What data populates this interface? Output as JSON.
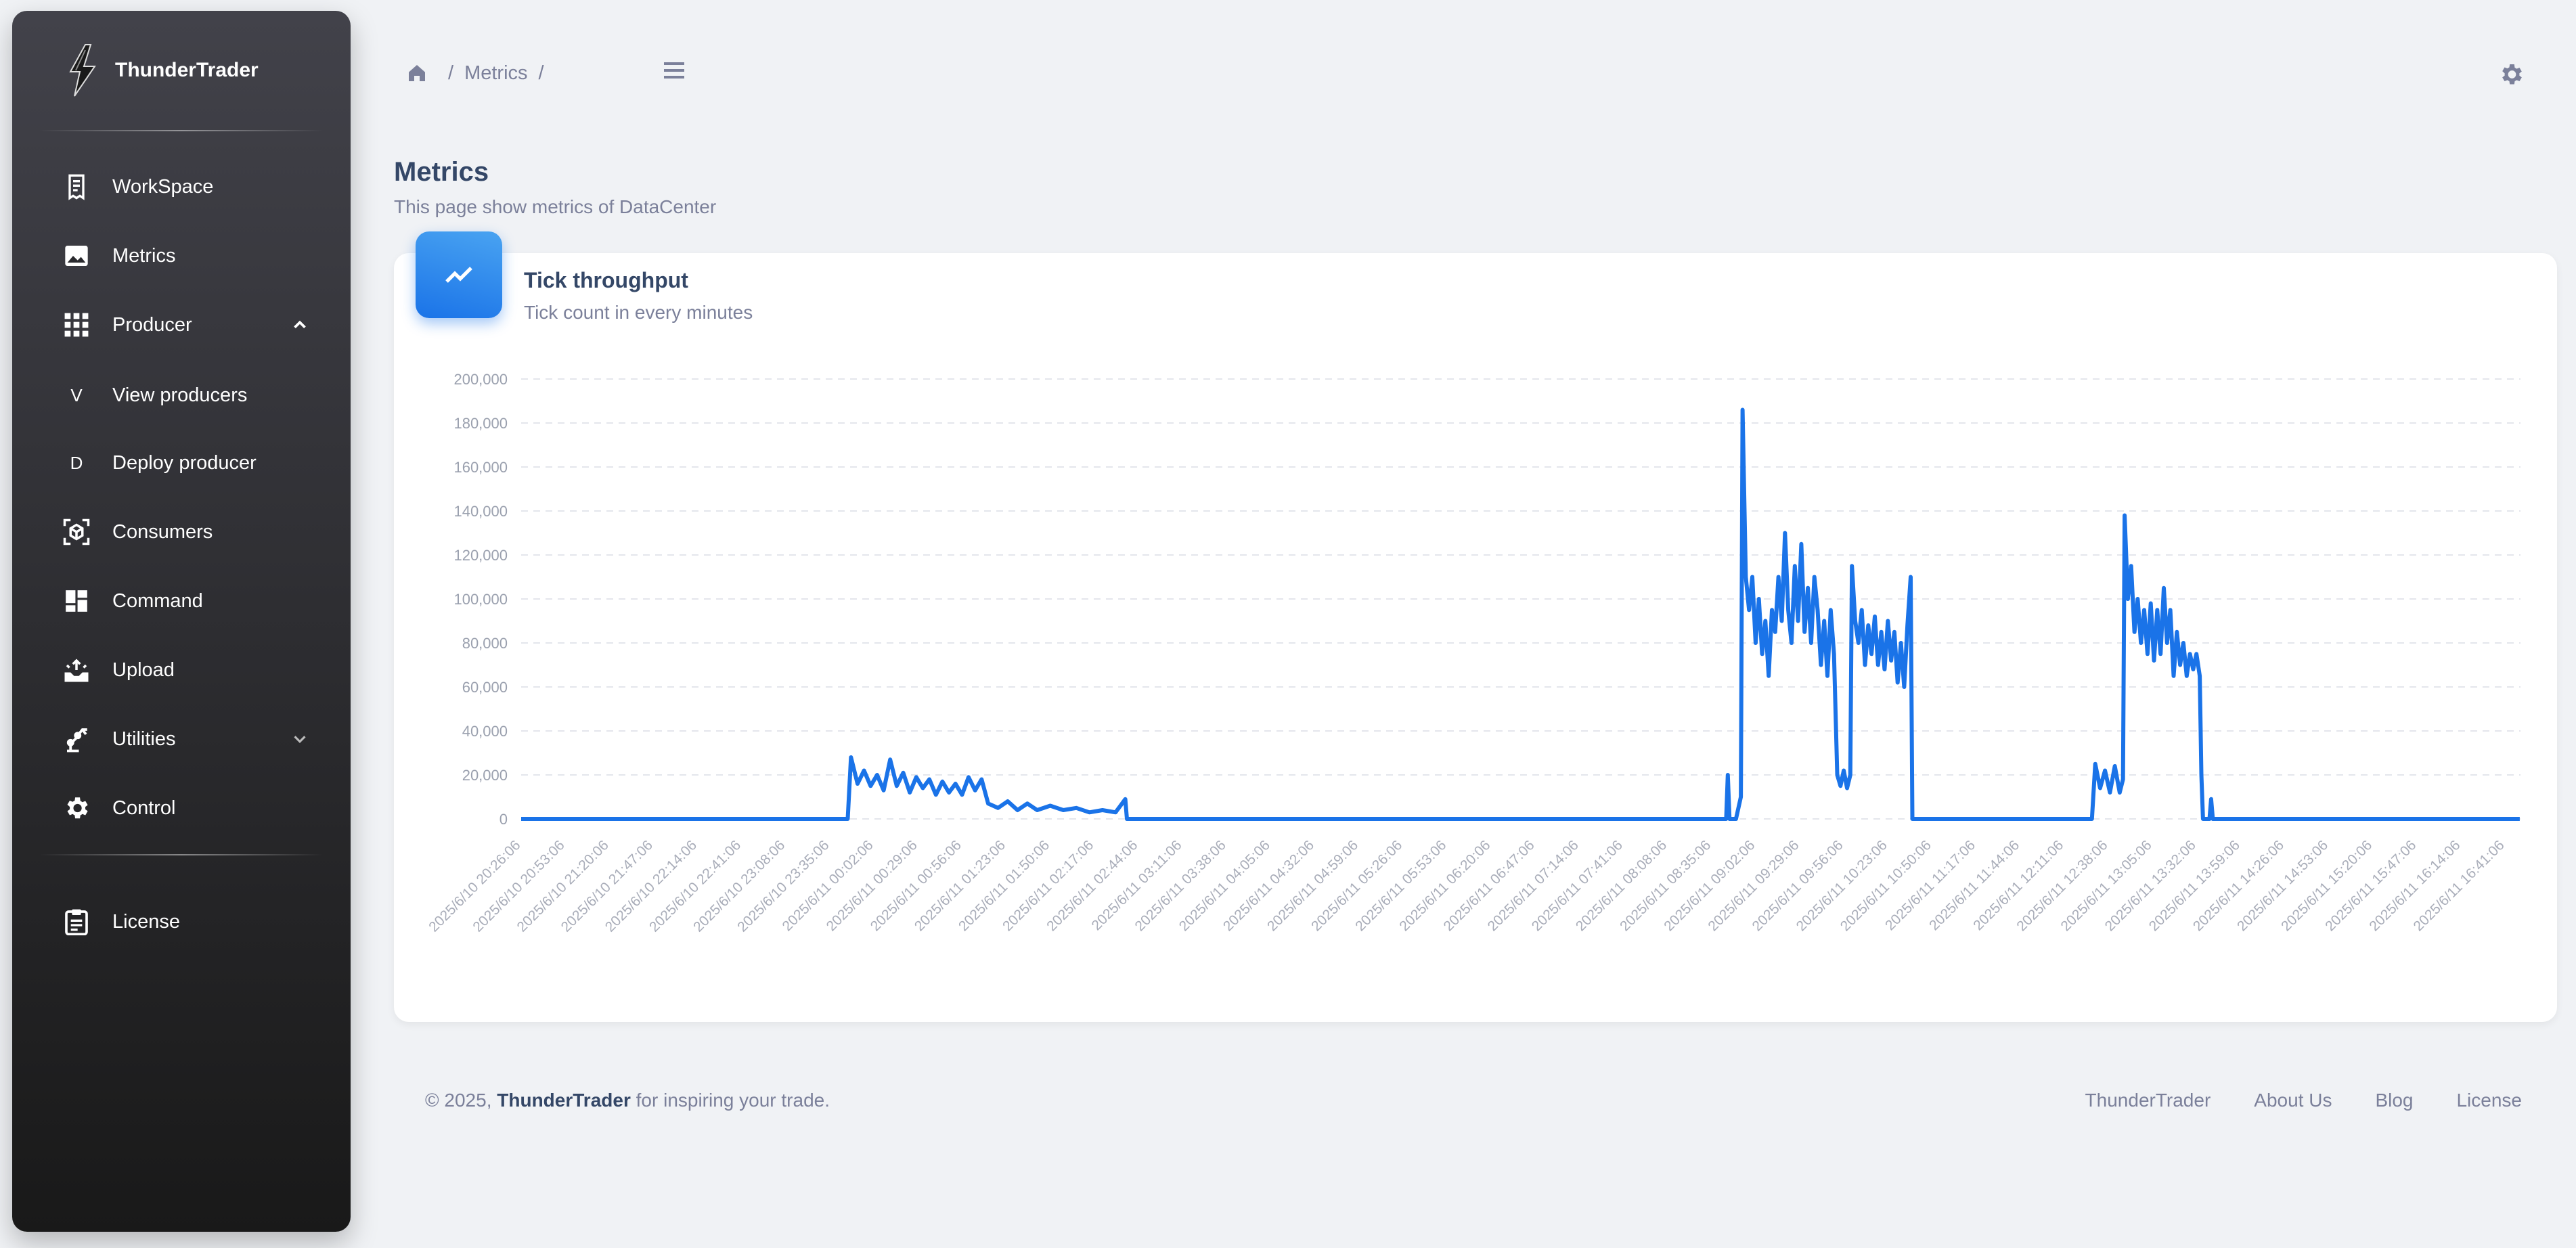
{
  "brand": {
    "name": "ThunderTrader"
  },
  "sidebar": {
    "items": [
      {
        "label": "WorkSpace"
      },
      {
        "label": "Metrics"
      },
      {
        "label": "Producer"
      },
      {
        "letter": "V",
        "label": "View producers"
      },
      {
        "letter": "D",
        "label": "Deploy producer"
      },
      {
        "label": "Consumers"
      },
      {
        "label": "Command"
      },
      {
        "label": "Upload"
      },
      {
        "label": "Utilities"
      },
      {
        "label": "Control"
      },
      {
        "label": "License"
      }
    ]
  },
  "breadcrumb": {
    "current": "Metrics",
    "separator": "/"
  },
  "page": {
    "title": "Metrics",
    "subtitle": "This page show metrics of DataCenter"
  },
  "card": {
    "title": "Tick throughput",
    "subtitle": "Tick count in every minutes"
  },
  "colors": {
    "accent": "#1a73e8",
    "sidebar_top": "#42424a",
    "sidebar_bottom": "#191919"
  },
  "chart_data": {
    "type": "line",
    "title": "",
    "xlabel": "",
    "ylabel": "",
    "ylim": [
      0,
      200000
    ],
    "yticks": [
      0,
      20000,
      40000,
      60000,
      80000,
      100000,
      120000,
      140000,
      160000,
      180000,
      200000
    ],
    "ytick_labels": [
      "0",
      "20,000",
      "40,000",
      "60,000",
      "80,000",
      "100,000",
      "120,000",
      "140,000",
      "160,000",
      "180,000",
      "200,000"
    ],
    "xtick_labels": [
      "2025/6/10 20:26:06",
      "2025/6/10 20:53:06",
      "2025/6/10 21:20:06",
      "2025/6/10 21:47:06",
      "2025/6/10 22:14:06",
      "2025/6/10 22:41:06",
      "2025/6/10 23:08:06",
      "2025/6/10 23:35:06",
      "2025/6/11 00:02:06",
      "2025/6/11 00:29:06",
      "2025/6/11 00:56:06",
      "2025/6/11 01:23:06",
      "2025/6/11 01:50:06",
      "2025/6/11 02:17:06",
      "2025/6/11 02:44:06",
      "2025/6/11 03:11:06",
      "2025/6/11 03:38:06",
      "2025/6/11 04:05:06",
      "2025/6/11 04:32:06",
      "2025/6/11 04:59:06",
      "2025/6/11 05:26:06",
      "2025/6/11 05:53:06",
      "2025/6/11 06:20:06",
      "2025/6/11 06:47:06",
      "2025/6/11 07:14:06",
      "2025/6/11 07:41:06",
      "2025/6/11 08:08:06",
      "2025/6/11 08:35:06",
      "2025/6/11 09:02:06",
      "2025/6/11 09:29:06",
      "2025/6/11 09:56:06",
      "2025/6/11 10:23:06",
      "2025/6/11 10:50:06",
      "2025/6/11 11:17:06",
      "2025/6/11 11:44:06",
      "2025/6/11 12:11:06",
      "2025/6/11 12:38:06",
      "2025/6/11 13:05:06",
      "2025/6/11 13:32:06",
      "2025/6/11 13:59:06",
      "2025/6/11 14:26:06",
      "2025/6/11 14:53:06",
      "2025/6/11 15:20:06",
      "2025/6/11 15:47:06",
      "2025/6/11 16:14:06",
      "2025/6/11 16:41:06"
    ],
    "grid": true,
    "legend": "none",
    "series": [
      {
        "color": "#1a73e8",
        "points": [
          [
            "2025/6/10 20:26:06",
            0
          ],
          [
            "2025/6/10 23:35:06",
            0
          ],
          [
            "2025/6/10 23:46:06",
            0
          ],
          [
            "2025/6/10 23:48:06",
            28000
          ],
          [
            "2025/6/10 23:52:06",
            16000
          ],
          [
            "2025/6/10 23:56:06",
            22000
          ],
          [
            "2025/6/11 00:00:06",
            15000
          ],
          [
            "2025/6/11 00:04:06",
            20000
          ],
          [
            "2025/6/11 00:08:06",
            13000
          ],
          [
            "2025/6/11 00:12:06",
            27000
          ],
          [
            "2025/6/11 00:16:06",
            15000
          ],
          [
            "2025/6/11 00:20:06",
            21000
          ],
          [
            "2025/6/11 00:24:06",
            12000
          ],
          [
            "2025/6/11 00:28:06",
            19000
          ],
          [
            "2025/6/11 00:32:06",
            14000
          ],
          [
            "2025/6/11 00:36:06",
            18000
          ],
          [
            "2025/6/11 00:40:06",
            11000
          ],
          [
            "2025/6/11 00:44:06",
            17000
          ],
          [
            "2025/6/11 00:48:06",
            12000
          ],
          [
            "2025/6/11 00:52:06",
            16000
          ],
          [
            "2025/6/11 00:56:06",
            11000
          ],
          [
            "2025/6/11 01:00:06",
            19000
          ],
          [
            "2025/6/11 01:04:06",
            13000
          ],
          [
            "2025/6/11 01:08:06",
            18000
          ],
          [
            "2025/6/11 01:12:06",
            7000
          ],
          [
            "2025/6/11 01:18:06",
            5000
          ],
          [
            "2025/6/11 01:24:06",
            8000
          ],
          [
            "2025/6/11 01:30:06",
            4000
          ],
          [
            "2025/6/11 01:36:06",
            7000
          ],
          [
            "2025/6/11 01:42:06",
            4000
          ],
          [
            "2025/6/11 01:50:06",
            6000
          ],
          [
            "2025/6/11 01:58:06",
            4000
          ],
          [
            "2025/6/11 02:06:06",
            5000
          ],
          [
            "2025/6/11 02:14:06",
            3000
          ],
          [
            "2025/6/11 02:22:06",
            4000
          ],
          [
            "2025/6/11 02:30:06",
            3000
          ],
          [
            "2025/6/11 02:36:06",
            9000
          ],
          [
            "2025/6/11 02:37:06",
            0
          ],
          [
            "2025/6/11 08:44:06",
            0
          ],
          [
            "2025/6/11 08:45:06",
            20000
          ],
          [
            "2025/6/11 08:46:06",
            0
          ],
          [
            "2025/6/11 08:50:06",
            0
          ],
          [
            "2025/6/11 08:53:06",
            10000
          ],
          [
            "2025/6/11 08:54:06",
            186000
          ],
          [
            "2025/6/11 08:56:06",
            110000
          ],
          [
            "2025/6/11 08:58:06",
            95000
          ],
          [
            "2025/6/11 09:00:06",
            110000
          ],
          [
            "2025/6/11 09:02:06",
            80000
          ],
          [
            "2025/6/11 09:04:06",
            100000
          ],
          [
            "2025/6/11 09:06:06",
            75000
          ],
          [
            "2025/6/11 09:08:06",
            90000
          ],
          [
            "2025/6/11 09:10:06",
            65000
          ],
          [
            "2025/6/11 09:12:06",
            95000
          ],
          [
            "2025/6/11 09:14:06",
            85000
          ],
          [
            "2025/6/11 09:16:06",
            110000
          ],
          [
            "2025/6/11 09:18:06",
            90000
          ],
          [
            "2025/6/11 09:20:06",
            130000
          ],
          [
            "2025/6/11 09:22:06",
            95000
          ],
          [
            "2025/6/11 09:24:06",
            80000
          ],
          [
            "2025/6/11 09:26:06",
            115000
          ],
          [
            "2025/6/11 09:28:06",
            90000
          ],
          [
            "2025/6/11 09:30:06",
            125000
          ],
          [
            "2025/6/11 09:32:06",
            85000
          ],
          [
            "2025/6/11 09:34:06",
            105000
          ],
          [
            "2025/6/11 09:36:06",
            80000
          ],
          [
            "2025/6/11 09:38:06",
            110000
          ],
          [
            "2025/6/11 09:40:06",
            95000
          ],
          [
            "2025/6/11 09:42:06",
            70000
          ],
          [
            "2025/6/11 09:44:06",
            90000
          ],
          [
            "2025/6/11 09:46:06",
            65000
          ],
          [
            "2025/6/11 09:48:06",
            95000
          ],
          [
            "2025/6/11 09:50:06",
            75000
          ],
          [
            "2025/6/11 09:52:06",
            20000
          ],
          [
            "2025/6/11 09:54:06",
            15000
          ],
          [
            "2025/6/11 09:56:06",
            22000
          ],
          [
            "2025/6/11 09:58:06",
            14000
          ],
          [
            "2025/6/11 10:00:06",
            20000
          ],
          [
            "2025/6/11 10:01:06",
            115000
          ],
          [
            "2025/6/11 10:03:06",
            90000
          ],
          [
            "2025/6/11 10:05:06",
            80000
          ],
          [
            "2025/6/11 10:07:06",
            95000
          ],
          [
            "2025/6/11 10:09:06",
            70000
          ],
          [
            "2025/6/11 10:11:06",
            88000
          ],
          [
            "2025/6/11 10:13:06",
            75000
          ],
          [
            "2025/6/11 10:15:06",
            92000
          ],
          [
            "2025/6/11 10:17:06",
            70000
          ],
          [
            "2025/6/11 10:19:06",
            85000
          ],
          [
            "2025/6/11 10:21:06",
            68000
          ],
          [
            "2025/6/11 10:23:06",
            90000
          ],
          [
            "2025/6/11 10:25:06",
            72000
          ],
          [
            "2025/6/11 10:27:06",
            85000
          ],
          [
            "2025/6/11 10:29:06",
            62000
          ],
          [
            "2025/6/11 10:31:06",
            80000
          ],
          [
            "2025/6/11 10:33:06",
            60000
          ],
          [
            "2025/6/11 10:35:06",
            88000
          ],
          [
            "2025/6/11 10:37:06",
            110000
          ],
          [
            "2025/6/11 10:38:06",
            0
          ],
          [
            "2025/6/11 12:28:06",
            0
          ],
          [
            "2025/6/11 12:30:06",
            25000
          ],
          [
            "2025/6/11 12:33:06",
            14000
          ],
          [
            "2025/6/11 12:36:06",
            22000
          ],
          [
            "2025/6/11 12:39:06",
            12000
          ],
          [
            "2025/6/11 12:42:06",
            24000
          ],
          [
            "2025/6/11 12:45:06",
            12000
          ],
          [
            "2025/6/11 12:47:06",
            18000
          ],
          [
            "2025/6/11 12:48:06",
            138000
          ],
          [
            "2025/6/11 12:50:06",
            100000
          ],
          [
            "2025/6/11 12:52:06",
            115000
          ],
          [
            "2025/6/11 12:54:06",
            85000
          ],
          [
            "2025/6/11 12:56:06",
            100000
          ],
          [
            "2025/6/11 12:58:06",
            80000
          ],
          [
            "2025/6/11 13:00:06",
            95000
          ],
          [
            "2025/6/11 13:02:06",
            75000
          ],
          [
            "2025/6/11 13:04:06",
            98000
          ],
          [
            "2025/6/11 13:06:06",
            72000
          ],
          [
            "2025/6/11 13:08:06",
            95000
          ],
          [
            "2025/6/11 13:10:06",
            75000
          ],
          [
            "2025/6/11 13:12:06",
            105000
          ],
          [
            "2025/6/11 13:14:06",
            80000
          ],
          [
            "2025/6/11 13:16:06",
            95000
          ],
          [
            "2025/6/11 13:18:06",
            65000
          ],
          [
            "2025/6/11 13:20:06",
            85000
          ],
          [
            "2025/6/11 13:22:06",
            70000
          ],
          [
            "2025/6/11 13:24:06",
            80000
          ],
          [
            "2025/6/11 13:26:06",
            65000
          ],
          [
            "2025/6/11 13:28:06",
            75000
          ],
          [
            "2025/6/11 13:30:06",
            68000
          ],
          [
            "2025/6/11 13:32:06",
            75000
          ],
          [
            "2025/6/11 13:34:06",
            65000
          ],
          [
            "2025/6/11 13:35:06",
            20000
          ],
          [
            "2025/6/11 13:36:06",
            0
          ],
          [
            "2025/6/11 13:40:06",
            0
          ],
          [
            "2025/6/11 13:41:06",
            9000
          ],
          [
            "2025/6/11 13:42:06",
            0
          ],
          [
            "2025/6/11 16:50:06",
            0
          ]
        ]
      }
    ]
  },
  "footer": {
    "copyright_prefix": "© 2025,",
    "brand": "ThunderTrader",
    "copyright_suffix": "for inspiring your trade.",
    "links": [
      "ThunderTrader",
      "About Us",
      "Blog",
      "License"
    ]
  }
}
